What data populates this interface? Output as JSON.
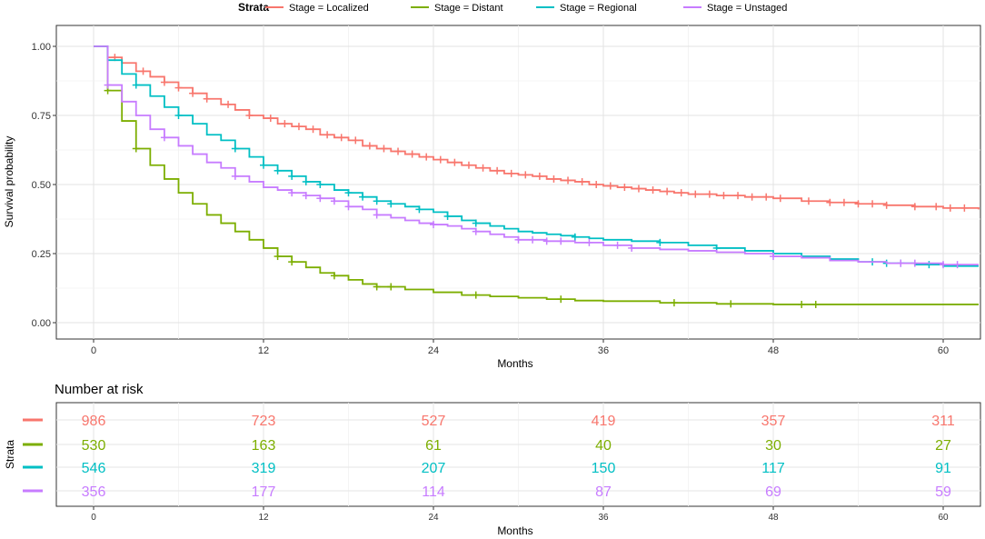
{
  "legend": {
    "title": "Strata",
    "entries": [
      {
        "label": "Stage = Localized",
        "color": "#F8766D"
      },
      {
        "label": "Stage = Distant",
        "color": "#7CAE00"
      },
      {
        "label": "Stage = Regional",
        "color": "#00BFC4"
      },
      {
        "label": "Stage = Unstaged",
        "color": "#C77CFF"
      }
    ]
  },
  "chart_data": {
    "type": "line",
    "step": true,
    "xlabel": "Months",
    "ylabel": "Survival probability",
    "xlim": [
      0,
      62.5
    ],
    "ylim": [
      0,
      1
    ],
    "x_ticks": [
      0,
      12,
      24,
      36,
      48,
      60
    ],
    "y_ticks": [
      0.0,
      0.25,
      0.5,
      0.75,
      1.0
    ],
    "y_tick_labels": [
      "0.00",
      "0.25",
      "0.50",
      "0.75",
      "1.00"
    ],
    "grid": true,
    "legend_position": "top",
    "series": [
      {
        "name": "Stage = Localized",
        "color": "#F8766D",
        "points": [
          [
            0,
            1.0
          ],
          [
            1,
            0.96
          ],
          [
            2,
            0.94
          ],
          [
            3,
            0.91
          ],
          [
            4,
            0.89
          ],
          [
            5,
            0.87
          ],
          [
            6,
            0.85
          ],
          [
            7,
            0.83
          ],
          [
            8,
            0.81
          ],
          [
            9,
            0.79
          ],
          [
            10,
            0.77
          ],
          [
            11,
            0.75
          ],
          [
            12,
            0.74
          ],
          [
            13,
            0.72
          ],
          [
            14,
            0.71
          ],
          [
            15,
            0.7
          ],
          [
            16,
            0.68
          ],
          [
            17,
            0.67
          ],
          [
            18,
            0.66
          ],
          [
            19,
            0.64
          ],
          [
            20,
            0.63
          ],
          [
            21,
            0.62
          ],
          [
            22,
            0.61
          ],
          [
            23,
            0.6
          ],
          [
            24,
            0.59
          ],
          [
            25,
            0.58
          ],
          [
            26,
            0.57
          ],
          [
            27,
            0.56
          ],
          [
            28,
            0.55
          ],
          [
            29,
            0.54
          ],
          [
            30,
            0.535
          ],
          [
            31,
            0.53
          ],
          [
            32,
            0.52
          ],
          [
            33,
            0.515
          ],
          [
            34,
            0.51
          ],
          [
            35,
            0.5
          ],
          [
            36,
            0.495
          ],
          [
            37,
            0.49
          ],
          [
            38,
            0.485
          ],
          [
            39,
            0.48
          ],
          [
            40,
            0.475
          ],
          [
            41,
            0.47
          ],
          [
            42,
            0.465
          ],
          [
            44,
            0.46
          ],
          [
            46,
            0.455
          ],
          [
            48,
            0.45
          ],
          [
            50,
            0.44
          ],
          [
            52,
            0.435
          ],
          [
            54,
            0.43
          ],
          [
            56,
            0.425
          ],
          [
            58,
            0.42
          ],
          [
            60,
            0.415
          ],
          [
            62.5,
            0.41
          ]
        ],
        "censor_x": [
          1.5,
          3.5,
          5,
          6,
          7,
          8,
          9.5,
          11,
          12.5,
          13.5,
          14.5,
          15.5,
          16.5,
          17.5,
          18.5,
          19.5,
          20.5,
          21.5,
          22.5,
          23.5,
          24.5,
          25.5,
          26.5,
          27.5,
          28.5,
          29.5,
          30.5,
          31.5,
          32.5,
          33.5,
          34.5,
          35.5,
          36.5,
          37.5,
          38.5,
          39.5,
          40.5,
          41.5,
          42.5,
          43.5,
          44.5,
          45.5,
          46.5,
          47.5,
          48.5,
          50.5,
          52,
          53,
          54,
          55,
          56,
          58,
          59.5,
          60.5,
          61.5
        ]
      },
      {
        "name": "Stage = Distant",
        "color": "#7CAE00",
        "points": [
          [
            0,
            1.0
          ],
          [
            1,
            0.84
          ],
          [
            2,
            0.73
          ],
          [
            3,
            0.63
          ],
          [
            4,
            0.57
          ],
          [
            5,
            0.52
          ],
          [
            6,
            0.47
          ],
          [
            7,
            0.43
          ],
          [
            8,
            0.39
          ],
          [
            9,
            0.36
          ],
          [
            10,
            0.33
          ],
          [
            11,
            0.3
          ],
          [
            12,
            0.27
          ],
          [
            13,
            0.24
          ],
          [
            14,
            0.22
          ],
          [
            15,
            0.2
          ],
          [
            16,
            0.18
          ],
          [
            17,
            0.17
          ],
          [
            18,
            0.155
          ],
          [
            19,
            0.14
          ],
          [
            20,
            0.13
          ],
          [
            22,
            0.12
          ],
          [
            24,
            0.11
          ],
          [
            26,
            0.1
          ],
          [
            28,
            0.095
          ],
          [
            30,
            0.09
          ],
          [
            32,
            0.085
          ],
          [
            34,
            0.08
          ],
          [
            36,
            0.078
          ],
          [
            40,
            0.072
          ],
          [
            44,
            0.068
          ],
          [
            48,
            0.066
          ],
          [
            62.5,
            0.066
          ]
        ],
        "censor_x": [
          1,
          3,
          13,
          14,
          17,
          20,
          21,
          27,
          33,
          41,
          45,
          50,
          51
        ]
      },
      {
        "name": "Stage = Regional",
        "color": "#00BFC4",
        "points": [
          [
            0,
            1.0
          ],
          [
            1,
            0.95
          ],
          [
            2,
            0.9
          ],
          [
            3,
            0.86
          ],
          [
            4,
            0.82
          ],
          [
            5,
            0.78
          ],
          [
            6,
            0.75
          ],
          [
            7,
            0.72
          ],
          [
            8,
            0.68
          ],
          [
            9,
            0.66
          ],
          [
            10,
            0.63
          ],
          [
            11,
            0.6
          ],
          [
            12,
            0.57
          ],
          [
            13,
            0.55
          ],
          [
            14,
            0.53
          ],
          [
            15,
            0.51
          ],
          [
            16,
            0.5
          ],
          [
            17,
            0.48
          ],
          [
            18,
            0.47
          ],
          [
            19,
            0.455
          ],
          [
            20,
            0.44
          ],
          [
            21,
            0.43
          ],
          [
            22,
            0.42
          ],
          [
            23,
            0.41
          ],
          [
            24,
            0.4
          ],
          [
            25,
            0.385
          ],
          [
            26,
            0.37
          ],
          [
            27,
            0.36
          ],
          [
            28,
            0.35
          ],
          [
            29,
            0.34
          ],
          [
            30,
            0.33
          ],
          [
            31,
            0.325
          ],
          [
            32,
            0.32
          ],
          [
            33,
            0.315
          ],
          [
            34,
            0.31
          ],
          [
            35,
            0.305
          ],
          [
            36,
            0.3
          ],
          [
            38,
            0.295
          ],
          [
            40,
            0.29
          ],
          [
            42,
            0.28
          ],
          [
            44,
            0.27
          ],
          [
            46,
            0.26
          ],
          [
            48,
            0.25
          ],
          [
            50,
            0.24
          ],
          [
            52,
            0.23
          ],
          [
            54,
            0.22
          ],
          [
            56,
            0.215
          ],
          [
            58,
            0.21
          ],
          [
            60,
            0.205
          ],
          [
            62.5,
            0.205
          ]
        ],
        "censor_x": [
          3,
          6,
          10,
          12,
          13,
          14,
          15,
          16,
          18,
          19,
          20,
          21,
          23,
          25,
          27,
          34,
          40,
          44,
          55,
          56,
          57,
          59
        ]
      },
      {
        "name": "Stage = Unstaged",
        "color": "#C77CFF",
        "points": [
          [
            0,
            1.0
          ],
          [
            1,
            0.86
          ],
          [
            2,
            0.8
          ],
          [
            3,
            0.75
          ],
          [
            4,
            0.7
          ],
          [
            5,
            0.67
          ],
          [
            6,
            0.64
          ],
          [
            7,
            0.61
          ],
          [
            8,
            0.58
          ],
          [
            9,
            0.56
          ],
          [
            10,
            0.53
          ],
          [
            11,
            0.51
          ],
          [
            12,
            0.49
          ],
          [
            13,
            0.48
          ],
          [
            14,
            0.47
          ],
          [
            15,
            0.46
          ],
          [
            16,
            0.45
          ],
          [
            17,
            0.44
          ],
          [
            18,
            0.42
          ],
          [
            19,
            0.41
          ],
          [
            20,
            0.39
          ],
          [
            21,
            0.38
          ],
          [
            22,
            0.37
          ],
          [
            23,
            0.36
          ],
          [
            24,
            0.355
          ],
          [
            25,
            0.35
          ],
          [
            26,
            0.34
          ],
          [
            27,
            0.33
          ],
          [
            28,
            0.32
          ],
          [
            29,
            0.31
          ],
          [
            30,
            0.3
          ],
          [
            32,
            0.295
          ],
          [
            34,
            0.29
          ],
          [
            36,
            0.28
          ],
          [
            38,
            0.27
          ],
          [
            40,
            0.265
          ],
          [
            42,
            0.26
          ],
          [
            44,
            0.255
          ],
          [
            46,
            0.25
          ],
          [
            48,
            0.24
          ],
          [
            50,
            0.235
          ],
          [
            52,
            0.225
          ],
          [
            54,
            0.22
          ],
          [
            56,
            0.215
          ],
          [
            60,
            0.21
          ],
          [
            62.5,
            0.21
          ]
        ],
        "censor_x": [
          1,
          5,
          10,
          14,
          15,
          16,
          17,
          18,
          20,
          24,
          27,
          30,
          31,
          32,
          33,
          35,
          37,
          38,
          48,
          57,
          58,
          60,
          61
        ]
      }
    ]
  },
  "risk_table": {
    "title": "Number at risk",
    "ylabel": "Strata",
    "xlabel": "Months",
    "x_ticks": [
      0,
      12,
      24,
      36,
      48,
      60
    ],
    "rows": [
      {
        "color": "#F8766D",
        "values": [
          "986",
          "723",
          "527",
          "419",
          "357",
          "311"
        ]
      },
      {
        "color": "#7CAE00",
        "values": [
          "530",
          "163",
          "61",
          "40",
          "30",
          "27"
        ]
      },
      {
        "color": "#00BFC4",
        "values": [
          "546",
          "319",
          "207",
          "150",
          "117",
          "91"
        ]
      },
      {
        "color": "#C77CFF",
        "values": [
          "356",
          "177",
          "114",
          "87",
          "69",
          "59"
        ]
      }
    ]
  }
}
